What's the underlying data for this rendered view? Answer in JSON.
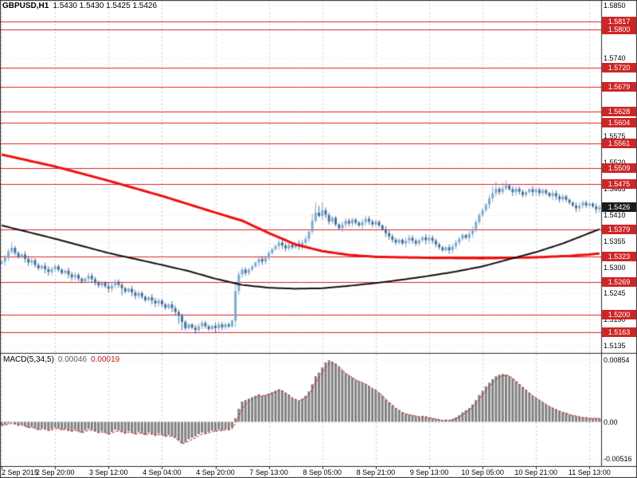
{
  "chart_data": [
    {
      "type": "candlestick",
      "title": "GBPUSD,H1",
      "ohlc_text": "1.5430 1.5430 1.5425 1.5426",
      "open": 1.543,
      "high": 1.543,
      "low": 1.5425,
      "close": 1.5426,
      "price_range": [
        1.512,
        1.5862
      ],
      "y_ticks": [
        "1.5850",
        "1.5740",
        "1.5575",
        "1.5520",
        "1.5465",
        "1.5410",
        "1.5355",
        "1.5300",
        "1.5245",
        "1.5190",
        "1.5135"
      ],
      "level_lines": [
        1.5817,
        1.58,
        1.572,
        1.5679,
        1.5628,
        1.5604,
        1.5561,
        1.5509,
        1.5475,
        1.5379,
        1.5323,
        1.5269,
        1.52,
        1.5163
      ],
      "current_price": 1.5426,
      "x_labels": [
        "2 Sep 2015",
        "2 Sep 20:00",
        "3 Sep 12:00",
        "4 Sep 04:00",
        "4 Sep 20:00",
        "7 Sep 13:00",
        "8 Sep 05:00",
        "8 Sep 21:00",
        "9 Sep 13:00",
        "10 Sep 05:00",
        "10 Sep 21:00",
        "11 Sep 13:00"
      ],
      "closes": [
        1.5312,
        1.532,
        1.5333,
        1.5341,
        1.533,
        1.5322,
        1.5327,
        1.5318,
        1.531,
        1.5315,
        1.5305,
        1.5298,
        1.5303,
        1.5296,
        1.529,
        1.5296,
        1.5302,
        1.5295,
        1.5288,
        1.5293,
        1.5285,
        1.5279,
        1.5284,
        1.5276,
        1.527,
        1.5276,
        1.5282,
        1.5275,
        1.5268,
        1.5262,
        1.5268,
        1.526,
        1.5255,
        1.5262,
        1.527,
        1.5263,
        1.5256,
        1.5249,
        1.5255,
        1.5247,
        1.524,
        1.5246,
        1.5238,
        1.5231,
        1.5237,
        1.523,
        1.5224,
        1.523,
        1.5222,
        1.5215,
        1.5222,
        1.5214,
        1.5206,
        1.5198,
        1.5185,
        1.5172,
        1.518,
        1.5173,
        1.5168,
        1.5176,
        1.5183,
        1.5176,
        1.517,
        1.5177,
        1.5172,
        1.518,
        1.5174,
        1.518,
        1.5176,
        1.5188,
        1.525,
        1.5285,
        1.5295,
        1.5288,
        1.5295,
        1.5302,
        1.531,
        1.5318,
        1.5312,
        1.532,
        1.533,
        1.5338,
        1.5345,
        1.5352,
        1.5346,
        1.534,
        1.5347,
        1.5342,
        1.535,
        1.5345,
        1.5352,
        1.536,
        1.5375,
        1.5398,
        1.5415,
        1.5408,
        1.542,
        1.541,
        1.5396,
        1.5404,
        1.539,
        1.5382,
        1.539,
        1.5398,
        1.5392,
        1.54,
        1.5394,
        1.5388,
        1.5395,
        1.5402,
        1.5396,
        1.539,
        1.5396,
        1.5388,
        1.538,
        1.5372,
        1.5365,
        1.5358,
        1.5352,
        1.5358,
        1.535,
        1.5356,
        1.5362,
        1.5356,
        1.535,
        1.5357,
        1.5363,
        1.5357,
        1.5362,
        1.5356,
        1.5348,
        1.5342,
        1.5336,
        1.5342,
        1.5336,
        1.5344,
        1.5352,
        1.536,
        1.5368,
        1.5362,
        1.537,
        1.538,
        1.5395,
        1.541,
        1.542,
        1.5432,
        1.5445,
        1.5456,
        1.5465,
        1.5458,
        1.5466,
        1.5472,
        1.5464,
        1.5458,
        1.5465,
        1.5459,
        1.5452,
        1.5458,
        1.5464,
        1.5458,
        1.5463,
        1.5456,
        1.5462,
        1.5456,
        1.545,
        1.5456,
        1.5449,
        1.5443,
        1.5449,
        1.5442,
        1.5436,
        1.543,
        1.5424,
        1.543,
        1.5436,
        1.543,
        1.5434,
        1.5428,
        1.5422,
        1.5426
      ],
      "spikes": {
        "3": [
          0.0006,
          0
        ],
        "36": [
          0,
          0.001
        ],
        "53": [
          0,
          0.001
        ],
        "54": [
          0,
          0.0012
        ],
        "70": [
          0.0008,
          0.0005
        ],
        "93": [
          0.001,
          0
        ],
        "94": [
          0.0018,
          0
        ],
        "95": [
          0.0012,
          0
        ],
        "96": [
          0.001,
          0
        ],
        "147": [
          0.0008,
          0
        ],
        "148": [
          0.001,
          0
        ],
        "150": [
          0.0008,
          0
        ],
        "151": [
          0.0008,
          0
        ]
      },
      "ma_red": {
        "x": [
          0,
          16,
          32,
          48,
          64,
          72,
          80,
          88,
          96,
          104,
          112,
          128,
          144,
          160,
          170,
          176,
          179
        ],
        "p": [
          1.5537,
          1.5512,
          1.5482,
          1.545,
          1.5415,
          1.5398,
          1.5372,
          1.5348,
          1.5334,
          1.5326,
          1.5322,
          1.532,
          1.5319,
          1.5321,
          1.5324,
          1.5327,
          1.5329
        ]
      },
      "ma_black": {
        "x": [
          0,
          16,
          32,
          48,
          56,
          64,
          72,
          80,
          88,
          96,
          104,
          112,
          120,
          128,
          136,
          144,
          152,
          160,
          168,
          176,
          179
        ],
        "p": [
          1.5388,
          1.536,
          1.533,
          1.5305,
          1.5292,
          1.5276,
          1.5263,
          1.5257,
          1.5255,
          1.5256,
          1.5261,
          1.5267,
          1.5274,
          1.5282,
          1.5291,
          1.5302,
          1.5317,
          1.5332,
          1.535,
          1.5372,
          1.538
        ]
      }
    },
    {
      "type": "bar",
      "name": "MACD(5,34,5)",
      "value_main": "0.00046",
      "value_signal": "0.00019",
      "range": [
        -0.0061,
        0.0094
      ],
      "y_ticks": [
        {
          "v": 0.00854,
          "label": "0.00854"
        },
        {
          "v": 0,
          "label": "0.00"
        },
        {
          "v": -0.00516,
          "label": "-0.00516"
        }
      ],
      "values": [
        -0.0005,
        -0.0004,
        -0.0002,
        -0.0001,
        -0.0003,
        -0.0005,
        -0.0004,
        -0.0006,
        -0.0008,
        -0.0007,
        -0.0009,
        -0.0011,
        -0.0009,
        -0.001,
        -0.0012,
        -0.001,
        -0.0008,
        -0.0009,
        -0.0011,
        -0.001,
        -0.0012,
        -0.0013,
        -0.0011,
        -0.0013,
        -0.0015,
        -0.0012,
        -0.001,
        -0.0011,
        -0.0013,
        -0.0015,
        -0.0013,
        -0.0015,
        -0.0017,
        -0.0014,
        -0.0011,
        -0.0012,
        -0.0014,
        -0.0016,
        -0.0013,
        -0.0015,
        -0.0017,
        -0.0014,
        -0.0016,
        -0.0018,
        -0.0015,
        -0.0017,
        -0.0019,
        -0.0016,
        -0.0018,
        -0.002,
        -0.0018,
        -0.002,
        -0.0022,
        -0.0026,
        -0.003,
        -0.0028,
        -0.0024,
        -0.0022,
        -0.002,
        -0.0017,
        -0.0015,
        -0.0016,
        -0.0014,
        -0.0012,
        -0.0013,
        -0.0011,
        -0.0012,
        -0.001,
        -0.0011,
        -0.0008,
        0.0005,
        0.0018,
        0.0028,
        0.003,
        0.0032,
        0.0034,
        0.0036,
        0.0038,
        0.0036,
        0.0037,
        0.0039,
        0.0041,
        0.0043,
        0.0045,
        0.0043,
        0.004,
        0.0037,
        0.0033,
        0.0031,
        0.0029,
        0.0032,
        0.0036,
        0.0042,
        0.0052,
        0.0063,
        0.0068,
        0.0075,
        0.0082,
        0.0085,
        0.0083,
        0.008,
        0.0076,
        0.0071,
        0.0067,
        0.0064,
        0.0061,
        0.0058,
        0.0056,
        0.0054,
        0.0052,
        0.0049,
        0.0046,
        0.0044,
        0.004,
        0.0036,
        0.0031,
        0.0027,
        0.0023,
        0.0019,
        0.0016,
        0.0013,
        0.0011,
        0.001,
        0.0009,
        0.0008,
        0.0007,
        0.0008,
        0.0007,
        0.0006,
        0.0005,
        0.0004,
        0.0003,
        0.0002,
        0.0003,
        0.0002,
        0.0004,
        0.0006,
        0.0009,
        0.0013,
        0.0016,
        0.0019,
        0.0024,
        0.003,
        0.0037,
        0.0043,
        0.0049,
        0.0054,
        0.0059,
        0.0063,
        0.0065,
        0.0066,
        0.0065,
        0.0063,
        0.006,
        0.0056,
        0.0052,
        0.0048,
        0.0044,
        0.004,
        0.0036,
        0.0033,
        0.003,
        0.0027,
        0.0024,
        0.0021,
        0.0019,
        0.0017,
        0.0015,
        0.0013,
        0.0012,
        0.001,
        0.0009,
        0.0008,
        0.0007,
        0.0006,
        0.0006,
        0.0005,
        0.0005,
        0.0005,
        0.00046
      ],
      "signal_period": 3
    }
  ],
  "colors": {
    "level_line": "#e02020",
    "badge_bg": "#cc2727",
    "current_badge_bg": "#1c1c1c",
    "candle_up": "#7fa8cc",
    "candle_down": "#46709a",
    "ma_red": "#ee1010",
    "ma_black": "#101010",
    "hist": "#808080",
    "signal": "#dd1111",
    "grid_v": "#c9c9c9",
    "grid_h": "#ebebeb",
    "frame": "#2a2a2a"
  }
}
